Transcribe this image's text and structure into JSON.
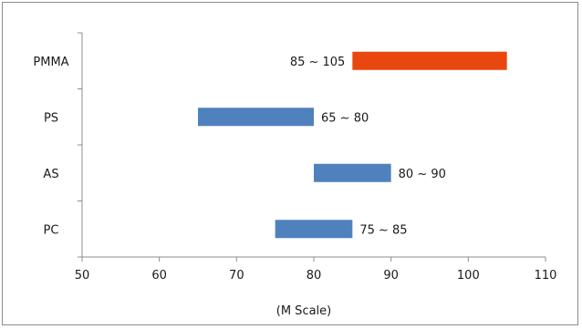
{
  "chart_data": {
    "type": "bar",
    "orientation": "horizontal",
    "style": "range",
    "categories": [
      "PMMA",
      "PS",
      "AS",
      "PC"
    ],
    "ranges": [
      {
        "category": "PMMA",
        "start": 85,
        "end": 105,
        "label": "85 ~ 105",
        "color": "#e8470f"
      },
      {
        "category": "PS",
        "start": 65,
        "end": 80,
        "label": "65 ~ 80",
        "color": "#4f81bd"
      },
      {
        "category": "AS",
        "start": 80,
        "end": 90,
        "label": "80 ~ 90",
        "color": "#4f81bd"
      },
      {
        "category": "PC",
        "start": 75,
        "end": 85,
        "label": "75 ~ 85",
        "color": "#4f81bd"
      }
    ],
    "xlim": [
      50,
      110
    ],
    "xticks": [
      "50",
      "60",
      "70",
      "80",
      "90",
      "100",
      "110"
    ],
    "xlabel": "(M Scale)",
    "ylabel": "",
    "grid": false,
    "legend": false
  }
}
